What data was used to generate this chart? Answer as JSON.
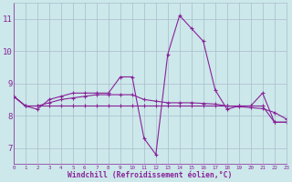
{
  "xlabel": "Windchill (Refroidissement éolien,°C)",
  "background_color": "#cce8ea",
  "grid_color": "#aabbcc",
  "line_color": "#882299",
  "x_values": [
    0,
    1,
    2,
    3,
    4,
    5,
    6,
    7,
    8,
    9,
    10,
    11,
    12,
    13,
    14,
    15,
    16,
    17,
    18,
    19,
    20,
    21,
    22,
    23
  ],
  "series1": [
    8.6,
    8.3,
    8.2,
    8.5,
    8.6,
    8.7,
    8.7,
    8.7,
    8.7,
    9.2,
    9.2,
    7.3,
    6.8,
    9.9,
    11.1,
    10.7,
    10.3,
    8.8,
    8.2,
    8.3,
    8.3,
    8.7,
    7.8,
    7.8
  ],
  "series2": [
    8.6,
    8.3,
    8.3,
    8.3,
    8.3,
    8.3,
    8.3,
    8.3,
    8.3,
    8.3,
    8.3,
    8.3,
    8.3,
    8.3,
    8.3,
    8.3,
    8.3,
    8.3,
    8.3,
    8.3,
    8.3,
    8.3,
    7.8,
    7.8
  ],
  "series3": [
    8.6,
    8.3,
    8.3,
    8.4,
    8.5,
    8.55,
    8.6,
    8.65,
    8.65,
    8.65,
    8.65,
    8.5,
    8.45,
    8.4,
    8.4,
    8.4,
    8.38,
    8.36,
    8.3,
    8.28,
    8.25,
    8.22,
    8.1,
    7.9
  ],
  "ylim": [
    6.5,
    11.5
  ],
  "yticks": [
    7,
    8,
    9,
    10,
    11
  ],
  "xlim": [
    0,
    23
  ]
}
